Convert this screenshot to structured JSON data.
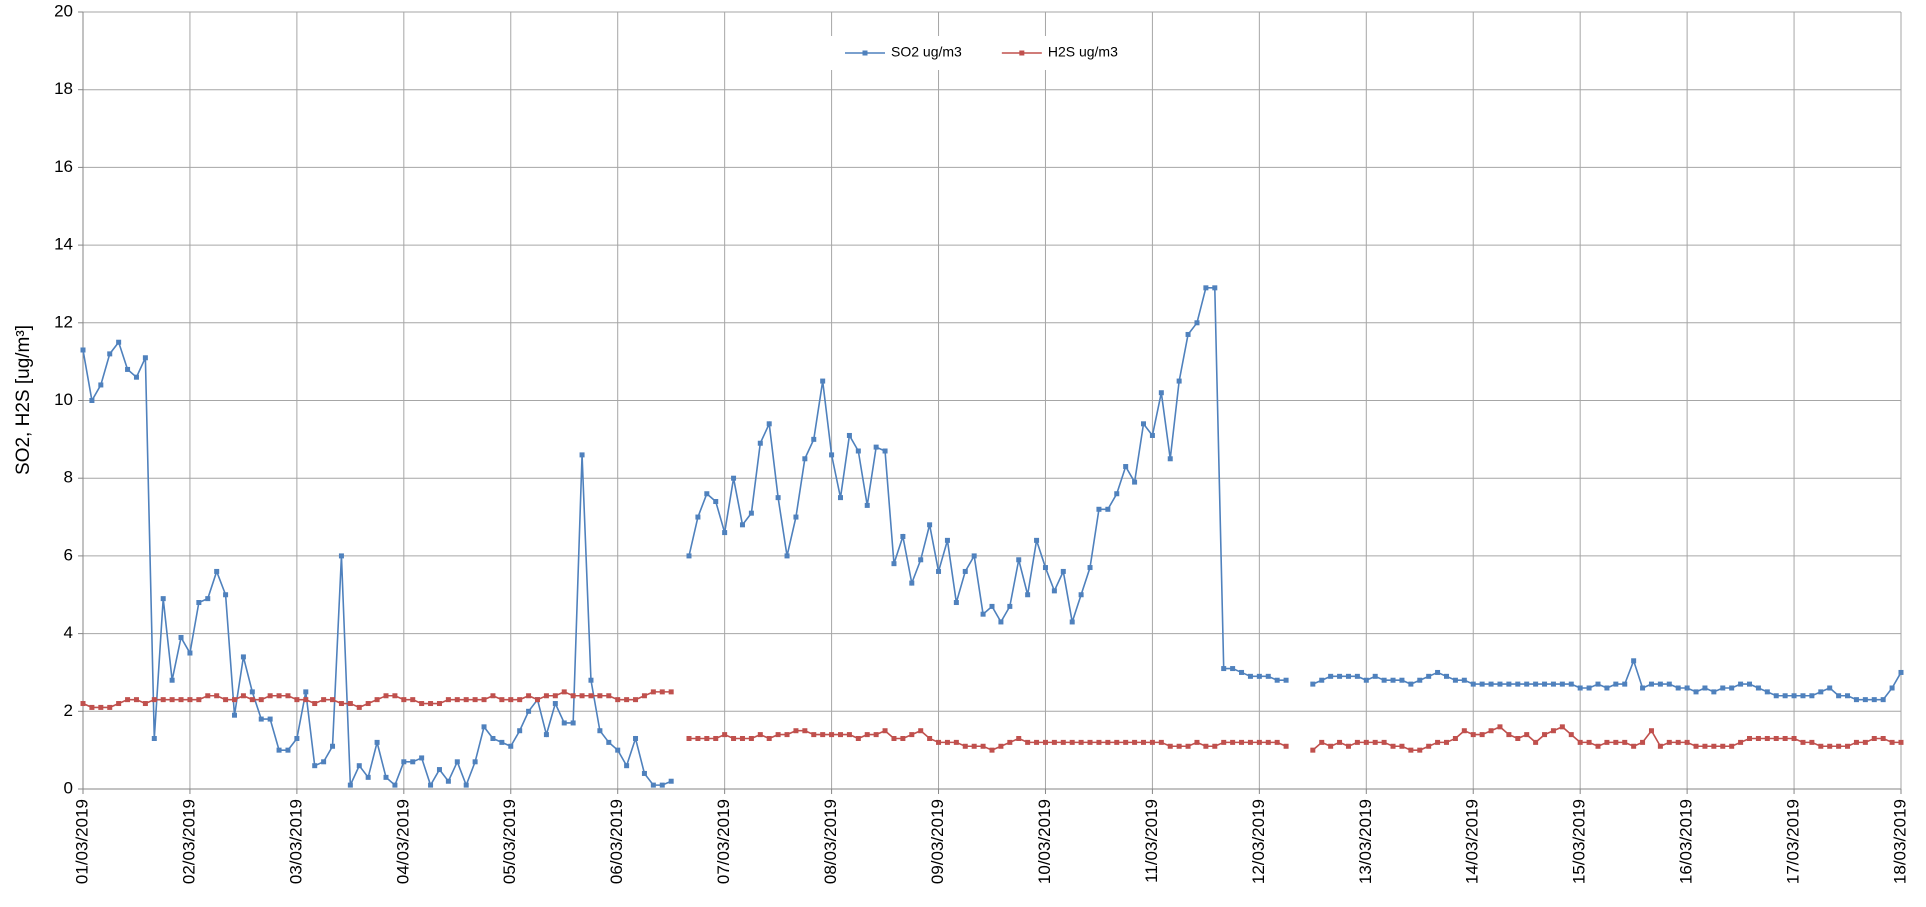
{
  "chart_data": {
    "type": "line",
    "ylabel": "SO2, H2S [ug/m³]",
    "ylim": [
      0,
      20
    ],
    "yticks": [
      0,
      2,
      4,
      6,
      8,
      10,
      12,
      14,
      16,
      18,
      20
    ],
    "grid": true,
    "legend": "top",
    "categories": [
      "01/03/2019",
      null,
      null,
      null,
      null,
      null,
      null,
      null,
      null,
      null,
      null,
      null,
      "02/03/2019",
      null,
      null,
      null,
      null,
      null,
      null,
      null,
      null,
      null,
      null,
      null,
      "03/03/2019",
      null,
      null,
      null,
      null,
      null,
      null,
      null,
      null,
      null,
      null,
      null,
      "04/03/2019",
      null,
      null,
      null,
      null,
      null,
      null,
      null,
      null,
      null,
      null,
      null,
      "05/03/2019",
      null,
      null,
      null,
      null,
      null,
      null,
      null,
      null,
      null,
      null,
      null,
      "06/03/2019",
      null,
      null,
      null,
      null,
      null,
      null,
      null,
      null,
      null,
      null,
      null,
      "07/03/2019",
      null,
      null,
      null,
      null,
      null,
      null,
      null,
      null,
      null,
      null,
      null,
      "08/03/2019",
      null,
      null,
      null,
      null,
      null,
      null,
      null,
      null,
      null,
      null,
      null,
      "09/03/2019",
      null,
      null,
      null,
      null,
      null,
      null,
      null,
      null,
      null,
      null,
      null,
      "10/03/2019",
      null,
      null,
      null,
      null,
      null,
      null,
      null,
      null,
      null,
      null,
      null,
      "11/03/2019",
      null,
      null,
      null,
      null,
      null,
      null,
      null,
      null,
      null,
      null,
      null,
      "12/03/2019",
      null,
      null,
      null,
      null,
      null,
      null,
      null,
      null,
      null,
      null,
      null,
      "13/03/2019",
      null,
      null,
      null,
      null,
      null,
      null,
      null,
      null,
      null,
      null,
      null,
      "14/03/2019",
      null,
      null,
      null,
      null,
      null,
      null,
      null,
      null,
      null,
      null,
      null,
      "15/03/2019",
      null,
      null,
      null,
      null,
      null,
      null,
      null,
      null,
      null,
      null,
      null,
      "16/03/2019",
      null,
      null,
      null,
      null,
      null,
      null,
      null,
      null,
      null,
      null,
      null,
      "17/03/2019",
      null,
      null,
      null,
      null,
      null,
      null,
      null,
      null,
      null,
      null,
      null,
      "18/03/2019"
    ],
    "series": [
      {
        "name": "SO2 ug/m3",
        "color": "#4f81bd",
        "values": [
          11.3,
          10.0,
          10.4,
          11.2,
          11.5,
          10.8,
          10.6,
          11.1,
          1.3,
          4.9,
          2.8,
          3.9,
          3.5,
          4.8,
          4.9,
          5.6,
          5.0,
          1.9,
          3.4,
          2.5,
          1.8,
          1.8,
          1.0,
          1.0,
          1.3,
          2.5,
          0.6,
          0.7,
          1.1,
          6.0,
          0.1,
          0.6,
          0.3,
          1.2,
          0.3,
          0.1,
          0.7,
          0.7,
          0.8,
          0.1,
          0.5,
          0.2,
          0.7,
          0.1,
          0.7,
          1.6,
          1.3,
          1.2,
          1.1,
          1.5,
          2.0,
          2.3,
          1.4,
          2.2,
          1.7,
          1.7,
          8.6,
          2.8,
          1.5,
          1.2,
          1.0,
          0.6,
          1.3,
          0.4,
          0.1,
          0.1,
          0.2,
          null,
          6.0,
          7.0,
          7.6,
          7.4,
          6.6,
          8.0,
          6.8,
          7.1,
          8.9,
          9.4,
          7.5,
          6.0,
          7.0,
          8.5,
          9.0,
          10.5,
          8.6,
          7.5,
          9.1,
          8.7,
          7.3,
          8.8,
          8.7,
          5.8,
          6.5,
          5.3,
          5.9,
          6.8,
          5.6,
          6.4,
          4.8,
          5.6,
          6.0,
          4.5,
          4.7,
          4.3,
          4.7,
          5.9,
          5.0,
          6.4,
          5.7,
          5.1,
          5.6,
          4.3,
          5.0,
          5.7,
          7.2,
          7.2,
          7.6,
          8.3,
          7.9,
          9.4,
          9.1,
          10.2,
          8.5,
          10.5,
          11.7,
          12.0,
          12.9,
          12.9,
          3.1,
          3.1,
          3.0,
          2.9,
          2.9,
          2.9,
          2.8,
          2.8,
          null,
          null,
          2.7,
          2.8,
          2.9,
          2.9,
          2.9,
          2.9,
          2.8,
          2.9,
          2.8,
          2.8,
          2.8,
          2.7,
          2.8,
          2.9,
          3.0,
          2.9,
          2.8,
          2.8,
          2.7,
          2.7,
          2.7,
          2.7,
          2.7,
          2.7,
          2.7,
          2.7,
          2.7,
          2.7,
          2.7,
          2.7,
          2.6,
          2.6,
          2.7,
          2.6,
          2.7,
          2.7,
          3.3,
          2.6,
          2.7,
          2.7,
          2.7,
          2.6,
          2.6,
          2.5,
          2.6,
          2.5,
          2.6,
          2.6,
          2.7,
          2.7,
          2.6,
          2.5,
          2.4,
          2.4,
          2.4,
          2.4,
          2.4,
          2.5,
          2.6,
          2.4,
          2.4,
          2.3,
          2.3,
          2.3,
          2.3,
          2.6,
          3.0
        ]
      },
      {
        "name": "H2S ug/m3",
        "color": "#c0504d",
        "values": [
          2.2,
          2.1,
          2.1,
          2.1,
          2.2,
          2.3,
          2.3,
          2.2,
          2.3,
          2.3,
          2.3,
          2.3,
          2.3,
          2.3,
          2.4,
          2.4,
          2.3,
          2.3,
          2.4,
          2.3,
          2.3,
          2.4,
          2.4,
          2.4,
          2.3,
          2.3,
          2.2,
          2.3,
          2.3,
          2.2,
          2.2,
          2.1,
          2.2,
          2.3,
          2.4,
          2.4,
          2.3,
          2.3,
          2.2,
          2.2,
          2.2,
          2.3,
          2.3,
          2.3,
          2.3,
          2.3,
          2.4,
          2.3,
          2.3,
          2.3,
          2.4,
          2.3,
          2.4,
          2.4,
          2.5,
          2.4,
          2.4,
          2.4,
          2.4,
          2.4,
          2.3,
          2.3,
          2.3,
          2.4,
          2.5,
          2.5,
          2.5,
          null,
          1.3,
          1.3,
          1.3,
          1.3,
          1.4,
          1.3,
          1.3,
          1.3,
          1.4,
          1.3,
          1.4,
          1.4,
          1.5,
          1.5,
          1.4,
          1.4,
          1.4,
          1.4,
          1.4,
          1.3,
          1.4,
          1.4,
          1.5,
          1.3,
          1.3,
          1.4,
          1.5,
          1.3,
          1.2,
          1.2,
          1.2,
          1.1,
          1.1,
          1.1,
          1.0,
          1.1,
          1.2,
          1.3,
          1.2,
          1.2,
          1.2,
          1.2,
          1.2,
          1.2,
          1.2,
          1.2,
          1.2,
          1.2,
          1.2,
          1.2,
          1.2,
          1.2,
          1.2,
          1.2,
          1.1,
          1.1,
          1.1,
          1.2,
          1.1,
          1.1,
          1.2,
          1.2,
          1.2,
          1.2,
          1.2,
          1.2,
          1.2,
          1.1,
          null,
          null,
          1.0,
          1.2,
          1.1,
          1.2,
          1.1,
          1.2,
          1.2,
          1.2,
          1.2,
          1.1,
          1.1,
          1.0,
          1.0,
          1.1,
          1.2,
          1.2,
          1.3,
          1.5,
          1.4,
          1.4,
          1.5,
          1.6,
          1.4,
          1.3,
          1.4,
          1.2,
          1.4,
          1.5,
          1.6,
          1.4,
          1.2,
          1.2,
          1.1,
          1.2,
          1.2,
          1.2,
          1.1,
          1.2,
          1.5,
          1.1,
          1.2,
          1.2,
          1.2,
          1.1,
          1.1,
          1.1,
          1.1,
          1.1,
          1.2,
          1.3,
          1.3,
          1.3,
          1.3,
          1.3,
          1.3,
          1.2,
          1.2,
          1.1,
          1.1,
          1.1,
          1.1,
          1.2,
          1.2,
          1.3,
          1.3,
          1.2,
          1.2
        ]
      }
    ]
  }
}
